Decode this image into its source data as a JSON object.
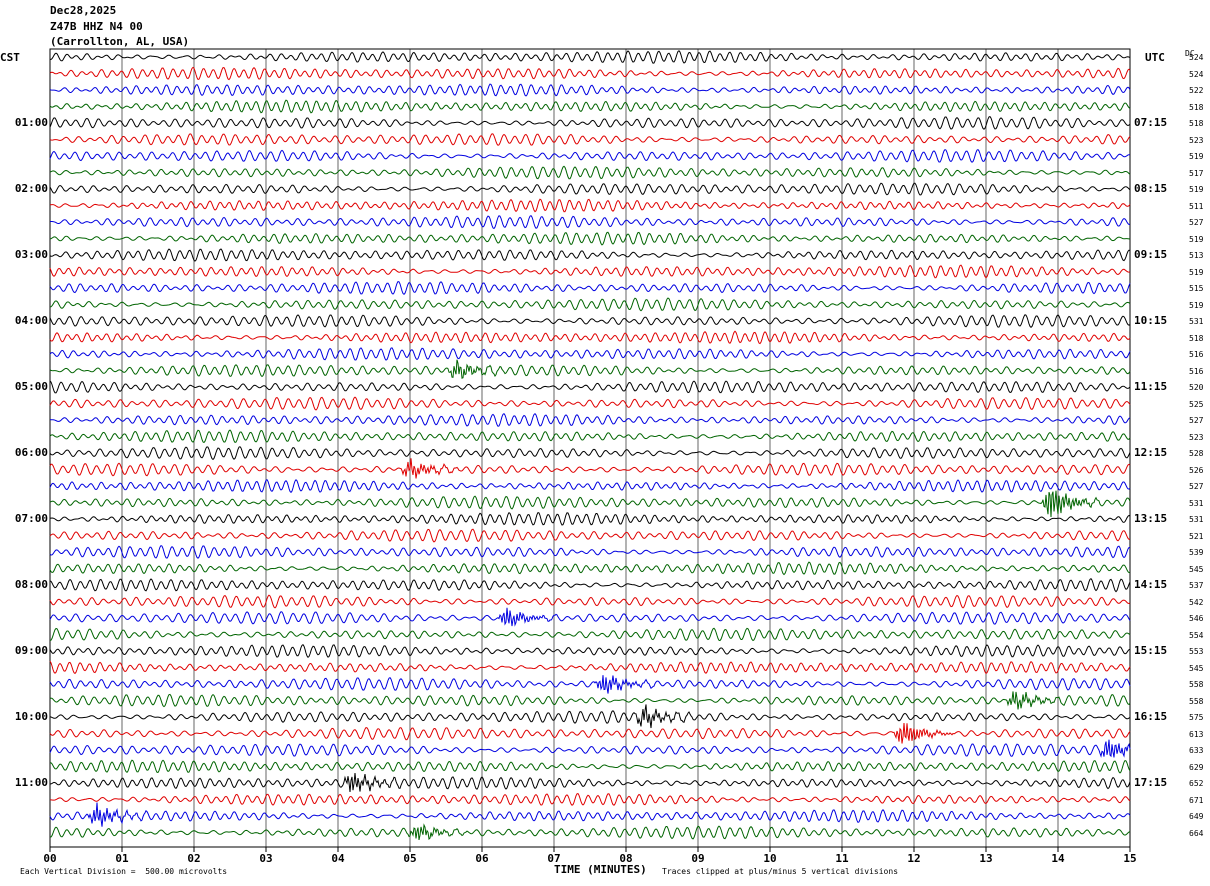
{
  "header": {
    "date": "Dec28,2025",
    "station": "Z47B HHZ N4 00",
    "location": "(Carrollton, AL, USA)"
  },
  "left_tz": "CST",
  "right_tz": "UTC",
  "dc_header": "DC",
  "footer": {
    "scale": "Each Vertical Division =  500.00 microvolts",
    "xtitle": "TIME (MINUTES)",
    "clip": "Traces clipped at plus/minus 5 vertical divisions"
  },
  "colors": {
    "cycle": [
      "#000000",
      "#e00000",
      "#0000e0",
      "#006400"
    ],
    "grid": "#000000"
  },
  "chart_data": {
    "type": "line",
    "title": "Z47B HHZ N4 00",
    "xlabel": "TIME (MINUTES)",
    "xlim": [
      0,
      15
    ],
    "x_ticks": [
      "00",
      "01",
      "02",
      "03",
      "04",
      "05",
      "06",
      "07",
      "08",
      "09",
      "10",
      "11",
      "12",
      "13",
      "14",
      "15"
    ],
    "rows": 48,
    "left_hour_labels": [
      "01:00",
      "02:00",
      "03:00",
      "04:00",
      "05:00",
      "06:00",
      "07:00",
      "08:00",
      "09:00",
      "10:00",
      "11:00"
    ],
    "right_hour_labels": [
      "07:15",
      "08:15",
      "09:15",
      "10:15",
      "11:15",
      "12:15",
      "13:15",
      "14:15",
      "15:15",
      "16:15",
      "17:15"
    ],
    "dc_offsets": [
      524,
      524,
      522,
      518,
      518,
      523,
      519,
      517,
      519,
      511,
      527,
      519,
      513,
      519,
      515,
      519,
      531,
      518,
      516,
      516,
      520,
      525,
      527,
      523,
      528,
      526,
      527,
      531,
      531,
      521,
      539,
      545,
      537,
      542,
      546,
      554,
      553,
      545,
      558,
      558,
      575,
      613,
      633,
      629,
      652,
      671,
      649,
      664
    ],
    "events": [
      {
        "row": 27,
        "minute": 13.9,
        "amp": 3.0
      },
      {
        "row": 46,
        "minute": 0.65,
        "amp": 1.8
      },
      {
        "row": 44,
        "minute": 4.2,
        "amp": 1.8
      },
      {
        "row": 41,
        "minute": 11.85,
        "amp": 2.2
      },
      {
        "row": 42,
        "minute": 14.7,
        "amp": 1.8
      },
      {
        "row": 34,
        "minute": 6.35,
        "amp": 1.8
      },
      {
        "row": 38,
        "minute": 7.7,
        "amp": 1.8
      },
      {
        "row": 39,
        "minute": 13.4,
        "amp": 1.6
      },
      {
        "row": 40,
        "minute": 8.25,
        "amp": 1.6
      },
      {
        "row": 25,
        "minute": 5.0,
        "amp": 1.6
      },
      {
        "row": 47,
        "minute": 5.1,
        "amp": 1.4
      },
      {
        "row": 19,
        "minute": 5.65,
        "amp": 1.5
      }
    ]
  }
}
